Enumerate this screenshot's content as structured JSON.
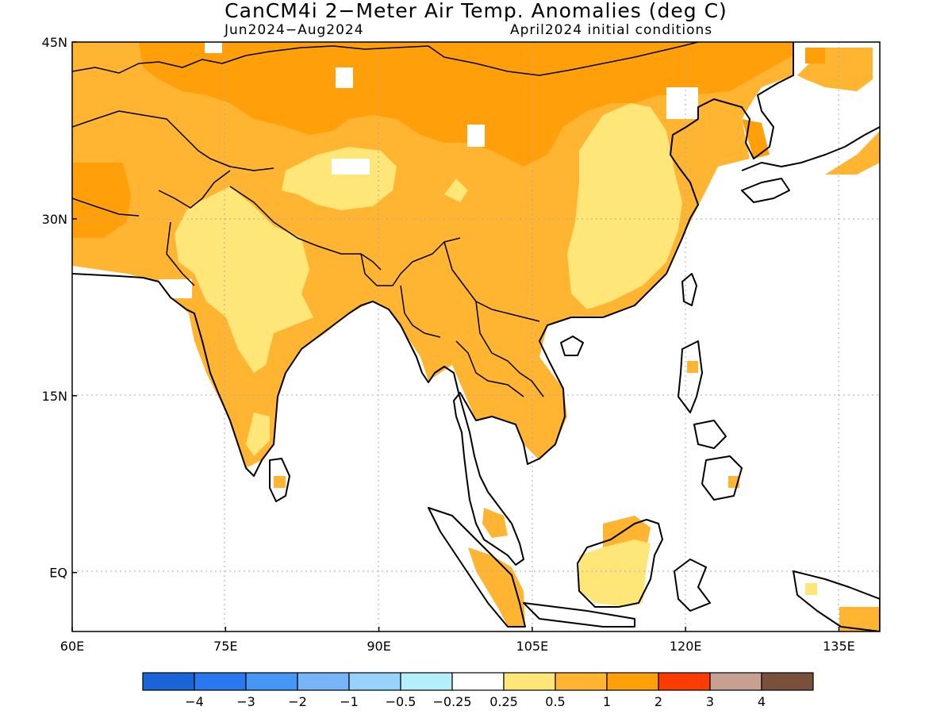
{
  "title": "CanCM4i 2−Meter Air Temp. Anomalies (deg C)",
  "subtitle_left": "Jun2024−Aug2024",
  "subtitle_right": "April2024 initial conditions",
  "axes": {
    "lat_ticks": [
      "45N",
      "30N",
      "15N",
      "EQ"
    ],
    "lon_ticks": [
      "60E",
      "75E",
      "90E",
      "105E",
      "120E",
      "135E"
    ],
    "lat_range": [
      -5,
      45
    ],
    "lon_range": [
      60,
      139
    ],
    "grid": "dotted"
  },
  "colorbar": {
    "colors": [
      "#1a64d8",
      "#2a78f0",
      "#4696f5",
      "#78b4f8",
      "#96d2fa",
      "#b4f0fa",
      "#ffffff",
      "#ffe678",
      "#ffb432",
      "#ffa00a",
      "#fa3c00",
      "#c8a092",
      "#78503c"
    ],
    "labels": [
      "−4",
      "−3",
      "−2",
      "−1",
      "−0.5",
      "−0.25",
      "0.25",
      "0.5",
      "1",
      "2",
      "3",
      "4"
    ]
  },
  "anomaly_regions": [
    {
      "region": "Mongolia / northern Tibet / Central Asia",
      "class": "1 to 2"
    },
    {
      "region": "Northern India / Tibet / Southeast Asia",
      "class": "0.5 to 1"
    },
    {
      "region": "Central India / eastern China / Borneo",
      "class": "0.25 to 0.5"
    }
  ]
}
